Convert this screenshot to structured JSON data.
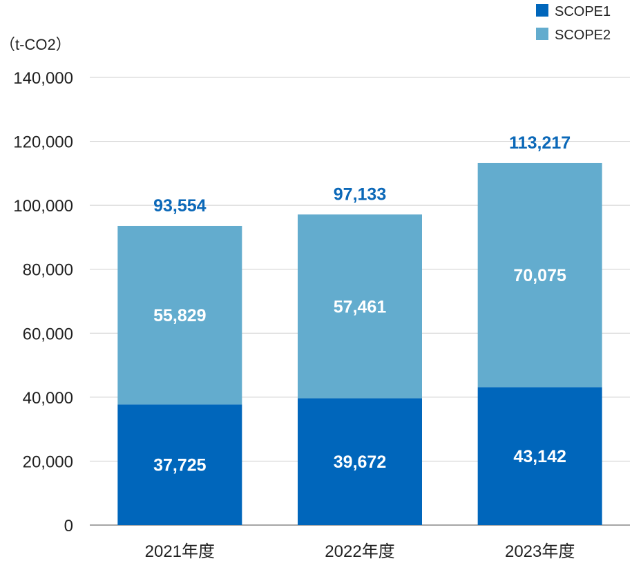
{
  "chart_data": {
    "type": "bar",
    "stacked": true,
    "unit_label": "（t-CO2）",
    "categories": [
      "2021年度",
      "2022年度",
      "2023年度"
    ],
    "series": [
      {
        "name": "SCOPE1",
        "color": "#0066bb",
        "values": [
          37725,
          39672,
          43142
        ],
        "labels": [
          "37,725",
          "39,672",
          "43,142"
        ]
      },
      {
        "name": "SCOPE2",
        "color": "#63acce",
        "values": [
          55829,
          57461,
          70075
        ],
        "labels": [
          "55,829",
          "57,461",
          "70,075"
        ]
      }
    ],
    "totals": [
      "93,554",
      "97,133",
      "113,217"
    ],
    "total_color": "#0b68b8",
    "ylim": [
      0,
      140000
    ],
    "yticks": [
      0,
      20000,
      40000,
      60000,
      80000,
      100000,
      120000,
      140000
    ],
    "ytick_labels": [
      "0",
      "20,000",
      "40,000",
      "60,000",
      "80,000",
      "100,000",
      "120,000",
      "140,000"
    ],
    "grid": true,
    "legend_position": "top-right"
  }
}
